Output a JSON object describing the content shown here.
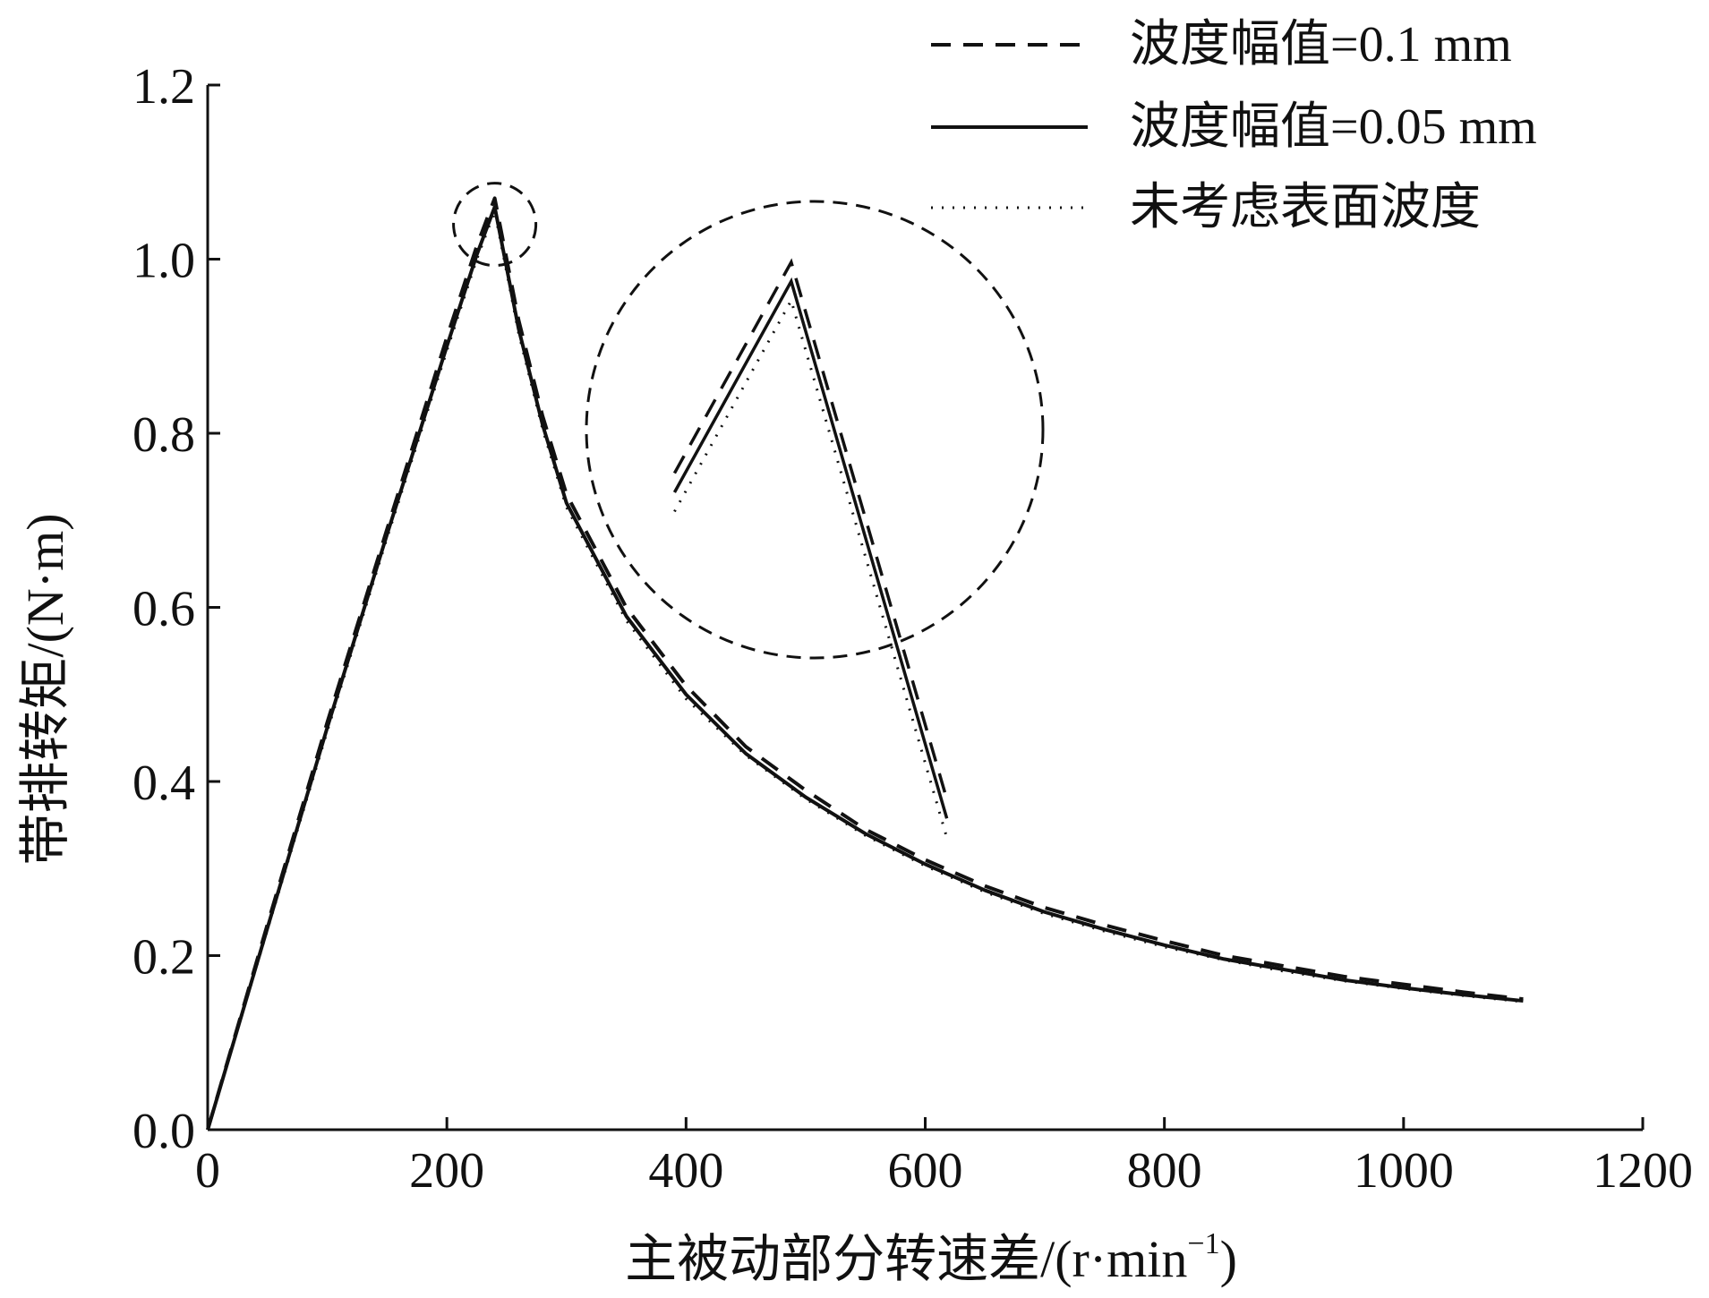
{
  "chart_data": {
    "type": "line",
    "title": "",
    "xlabel": "主被动部分转速差/(r·min",
    "xlabel_sup": "−1",
    "xlabel_close": ")",
    "ylabel": "带排转矩/(N·m)",
    "xlim": [
      0,
      1200
    ],
    "ylim": [
      0,
      1.2
    ],
    "xticks": [
      0,
      200,
      400,
      600,
      800,
      1000,
      1200
    ],
    "xtick_labels": [
      "0",
      "200",
      "400",
      "600",
      "800",
      "1000",
      "1200"
    ],
    "yticks": [
      0.0,
      0.2,
      0.4,
      0.6,
      0.8,
      1.0,
      1.2
    ],
    "ytick_labels": [
      "0.0",
      "0.2",
      "0.4",
      "0.6",
      "0.8",
      "1.0",
      "1.2"
    ],
    "grid": false,
    "legend_position": "top-right",
    "series": [
      {
        "name": "波度幅值=0.1 mm",
        "line_style": "dashed",
        "color": "#111111",
        "x": [
          0,
          50,
          100,
          150,
          200,
          225,
          240,
          260,
          280,
          300,
          350,
          400,
          450,
          500,
          550,
          600,
          650,
          700,
          750,
          800,
          850,
          900,
          950,
          1000,
          1050,
          1100
        ],
        "y": [
          0.0,
          0.236,
          0.468,
          0.69,
          0.91,
          1.015,
          1.07,
          0.93,
          0.82,
          0.73,
          0.6,
          0.51,
          0.44,
          0.39,
          0.345,
          0.31,
          0.28,
          0.255,
          0.235,
          0.217,
          0.2,
          0.188,
          0.176,
          0.167,
          0.158,
          0.15
        ]
      },
      {
        "name": "波度幅值=0.05 mm",
        "line_style": "solid",
        "color": "#111111",
        "x": [
          0,
          50,
          100,
          150,
          200,
          225,
          240,
          260,
          280,
          300,
          350,
          400,
          450,
          500,
          550,
          600,
          650,
          700,
          750,
          800,
          850,
          900,
          950,
          1000,
          1050,
          1100
        ],
        "y": [
          0.0,
          0.232,
          0.462,
          0.684,
          0.9,
          1.005,
          1.06,
          0.92,
          0.81,
          0.72,
          0.59,
          0.5,
          0.432,
          0.382,
          0.34,
          0.305,
          0.275,
          0.25,
          0.23,
          0.212,
          0.196,
          0.184,
          0.172,
          0.163,
          0.155,
          0.148
        ]
      },
      {
        "name": "未考虑表面波度",
        "line_style": "dotted",
        "color": "#111111",
        "x": [
          0,
          50,
          100,
          150,
          200,
          225,
          240,
          260,
          280,
          300,
          350,
          400,
          450,
          500,
          550,
          600,
          650,
          700,
          750,
          800,
          850,
          900,
          950,
          1000,
          1050,
          1100
        ],
        "y": [
          0.0,
          0.23,
          0.458,
          0.68,
          0.895,
          1.0,
          1.055,
          0.915,
          0.805,
          0.715,
          0.585,
          0.495,
          0.43,
          0.38,
          0.338,
          0.303,
          0.273,
          0.248,
          0.228,
          0.21,
          0.195,
          0.182,
          0.171,
          0.162,
          0.154,
          0.147
        ]
      }
    ],
    "annotations": [
      {
        "type": "dashed-circle-highlight",
        "around": {
          "x": 240,
          "y": 1.04
        }
      },
      {
        "type": "dashed-circle-zoom-inset",
        "shows": "magnified peak region of the three series"
      }
    ]
  }
}
